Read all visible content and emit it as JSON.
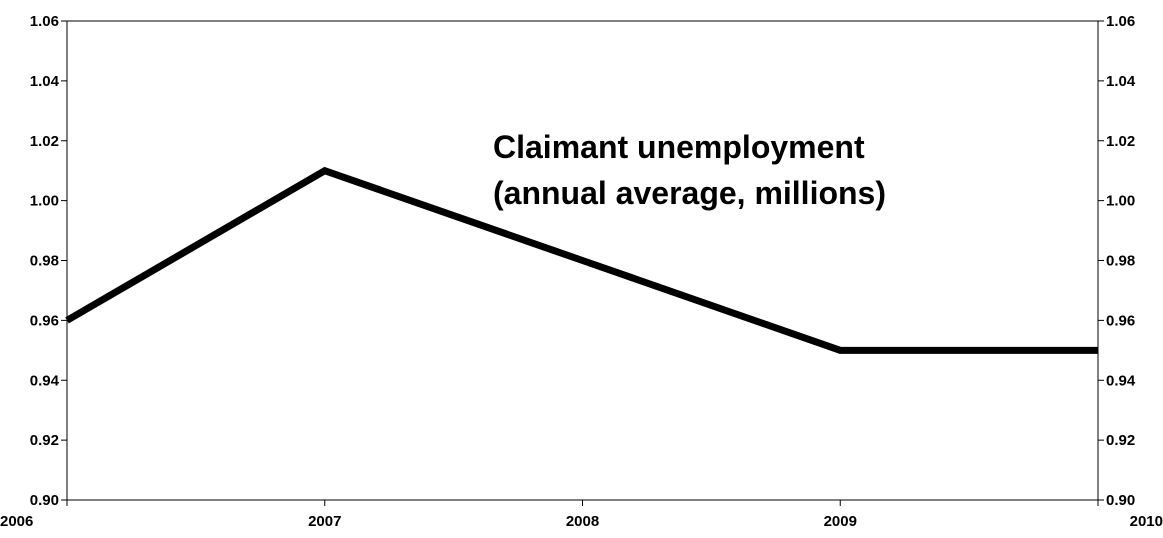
{
  "chart_data": {
    "type": "line",
    "title_lines": [
      "Claimant unemployment",
      "(annual average, millions)"
    ],
    "xlabel": "",
    "ylabel": "",
    "categories": [
      "2006",
      "2007",
      "2008",
      "2009",
      "2010"
    ],
    "series": [
      {
        "values": [
          0.96,
          1.01,
          0.98,
          0.95,
          0.95
        ],
        "color": "#000000"
      }
    ],
    "ylim": [
      0.9,
      1.06
    ],
    "yticks": [
      "0.90",
      "0.92",
      "0.94",
      "0.96",
      "0.98",
      "1.00",
      "1.02",
      "1.04",
      "1.06"
    ],
    "secondary_y_axis": true,
    "grid": false,
    "legend": "none"
  }
}
